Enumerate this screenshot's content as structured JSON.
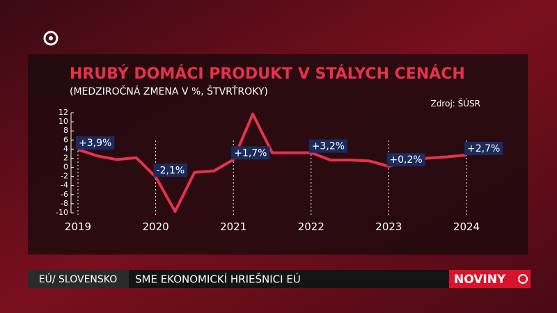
{
  "chart_data": {
    "type": "line",
    "title": "HRUBÝ DOMÁCI PRODUKT V STÁLYCH CENÁCH",
    "subtitle": "(MEDZIROČNÁ ZMENA V %, ŠTVRŤROKY)",
    "source": "Zdroj: ŠÚSR",
    "x": [
      2019,
      2019.25,
      2019.5,
      2019.75,
      2020,
      2020.25,
      2020.5,
      2020.75,
      2021,
      2021.25,
      2021.5,
      2021.75,
      2022,
      2022.25,
      2022.5,
      2022.75,
      2023,
      2023.25,
      2023.5,
      2023.75,
      2024
    ],
    "values": [
      3.9,
      2.5,
      1.7,
      2.1,
      -2.1,
      -9.7,
      -1.1,
      -0.8,
      1.7,
      11.7,
      3.2,
      3.2,
      3.2,
      1.6,
      1.6,
      1.4,
      0.2,
      1.6,
      2.0,
      2.3,
      2.7
    ],
    "value_labels": [
      "+3,9%",
      null,
      null,
      null,
      "-2,1%",
      null,
      null,
      null,
      "+1,7%",
      null,
      null,
      null,
      "+3,2%",
      null,
      null,
      null,
      "+0,2%",
      null,
      null,
      null,
      "+2,7%"
    ],
    "color": "#e8324a",
    "xlim": [
      2019,
      2024
    ],
    "xticks": [
      2019,
      2020,
      2021,
      2022,
      2023,
      2024
    ],
    "ylim": [
      -10,
      12
    ],
    "yticks": [
      12,
      10,
      8,
      6,
      4,
      2,
      0,
      -2,
      -4,
      -6,
      -8,
      -10
    ],
    "grid": true
  },
  "banner": {
    "section": "EÚ/ SLOVENSKO",
    "headline": "SME EKONOMICKÍ HRIEŠNICI EÚ",
    "brand": "NOVINY"
  }
}
